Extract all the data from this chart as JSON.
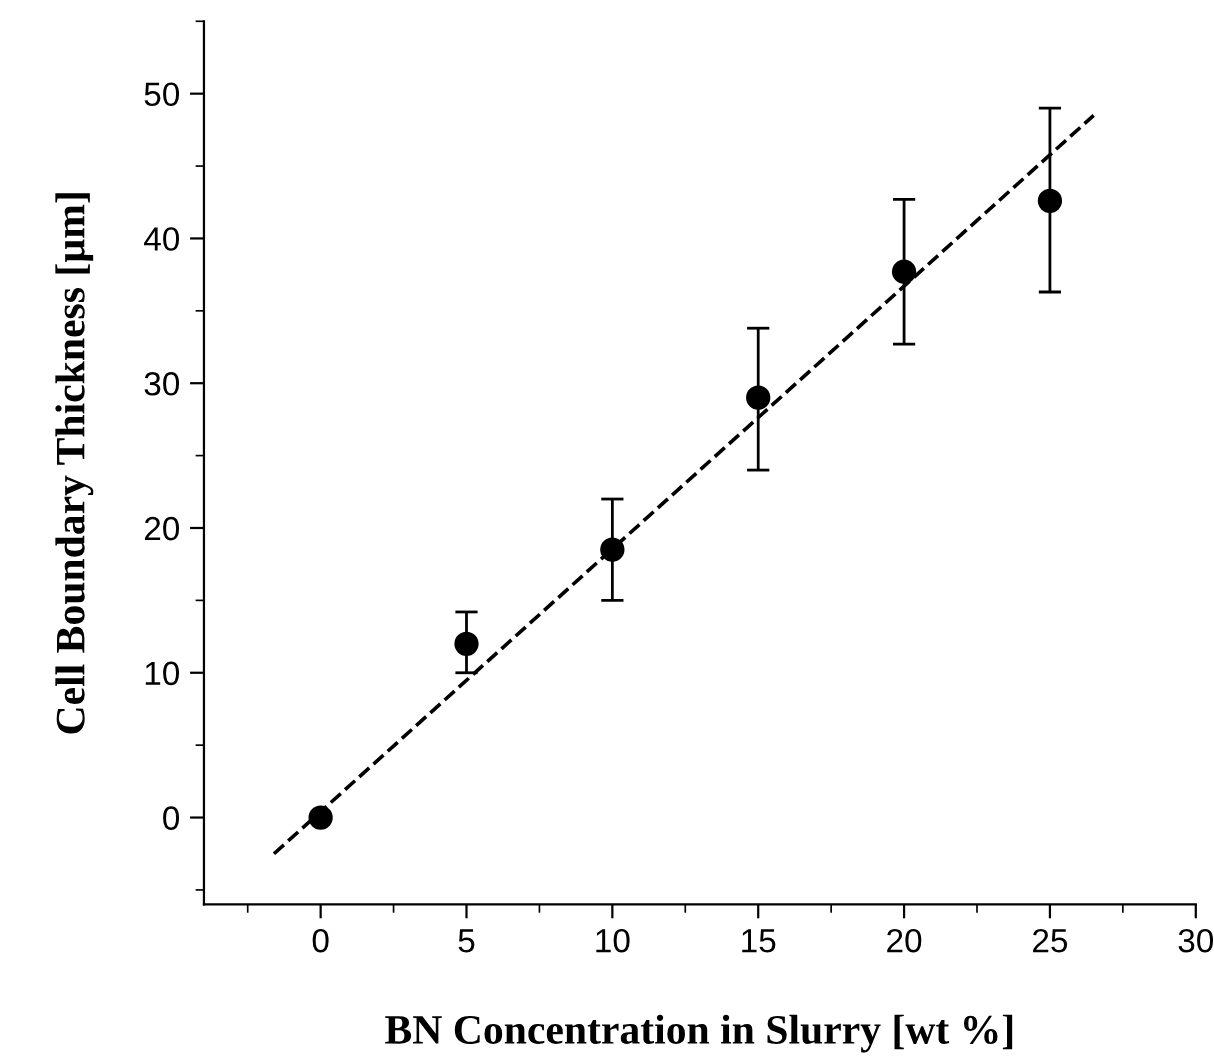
{
  "chart_data": {
    "type": "scatter",
    "xlabel": "BN Concentration in Slurry [wt %]",
    "ylabel": "Cell Boundary Thickness [µm]",
    "xlim": [
      -4,
      30
    ],
    "ylim": [
      -6,
      55
    ],
    "xticks": [
      0,
      5,
      10,
      15,
      20,
      25,
      30
    ],
    "yticks": [
      0,
      10,
      20,
      30,
      40,
      50
    ],
    "grid": false,
    "series": [
      {
        "color": "#000000",
        "marker": "circle",
        "x": [
          0,
          5,
          10,
          15,
          20,
          25
        ],
        "values": [
          0,
          12,
          18.5,
          29,
          37.7,
          42.6
        ],
        "errors": [
          null,
          [
            10,
            14.2
          ],
          [
            15,
            22
          ],
          [
            24,
            33.8
          ],
          [
            32.7,
            42.7
          ],
          [
            36.3,
            49
          ]
        ]
      },
      {
        "type": "line",
        "color": "#000000",
        "line_style": "dashed",
        "x": [
          -1.6,
          26.5
        ],
        "values": [
          -2.5,
          48.5
        ]
      }
    ]
  }
}
